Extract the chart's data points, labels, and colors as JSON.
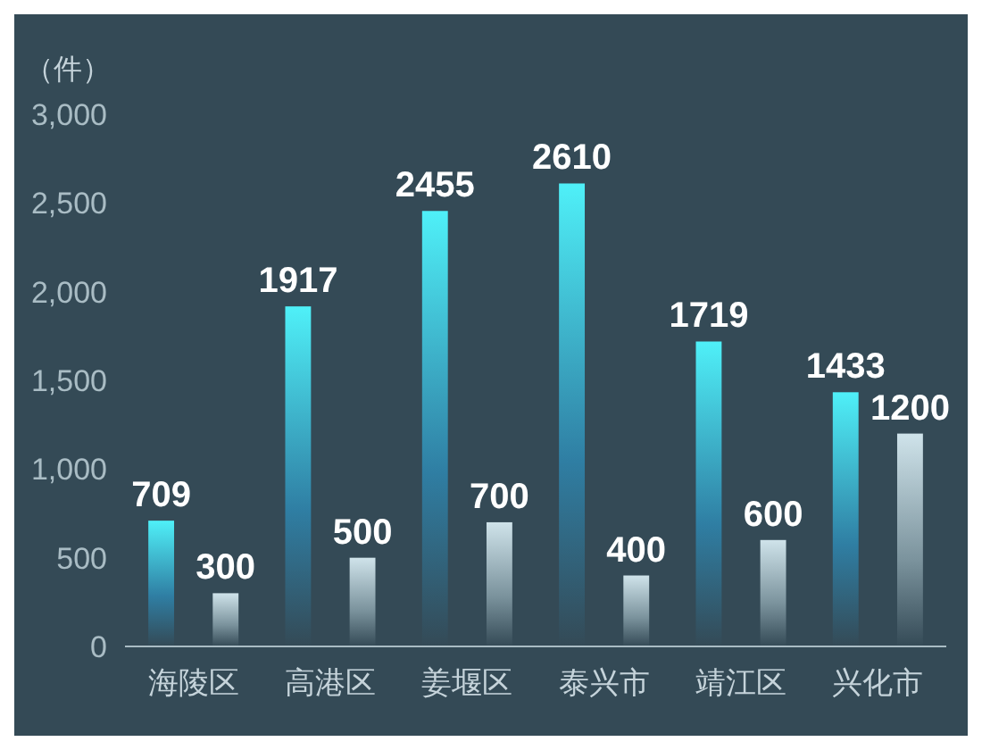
{
  "chart_data": {
    "type": "bar",
    "ylabel": "（件）",
    "categories": [
      "海陵区",
      "高港区",
      "姜堰区",
      "泰兴市",
      "靖江区",
      "兴化市"
    ],
    "series": [
      {
        "color": "#4ff0f8",
        "values": [
          709,
          1917,
          2455,
          2610,
          1719,
          1433
        ]
      },
      {
        "color": "#cfe3ea",
        "values": [
          300,
          500,
          700,
          400,
          600,
          1200
        ]
      }
    ],
    "ylim": [
      0,
      3000
    ],
    "yticks": [
      0,
      500,
      {
        "value": 1000,
        "label": "1,000"
      },
      {
        "value": 1500,
        "label": "1,500"
      },
      {
        "value": 2000,
        "label": "2,000"
      },
      {
        "value": 2500,
        "label": "2,500"
      },
      {
        "value": 3000,
        "label": "3,000"
      }
    ],
    "data_labels": true
  }
}
